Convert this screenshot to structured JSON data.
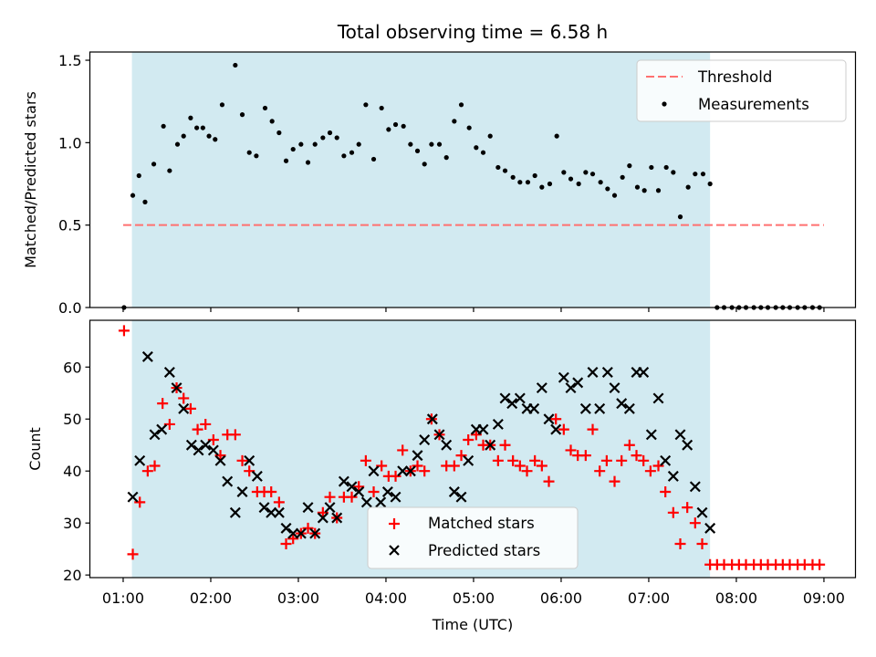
{
  "chart_data": [
    {
      "type": "scatter",
      "title": "Total observing time = 6.58 h",
      "xlabel": "",
      "ylabel": "Matched/Predicted stars",
      "ylim": [
        0,
        1.55
      ],
      "yticks": [
        "0.0",
        "0.5",
        "1.0",
        "1.5"
      ],
      "xlim": [
        0.62,
        9.36
      ],
      "xticks": [
        1,
        2,
        3,
        4,
        5,
        6,
        7,
        8,
        9
      ],
      "shaded_span": {
        "x": [
          1.1,
          7.7
        ],
        "color": "#add8e6"
      },
      "legend": {
        "location": "upper right"
      },
      "series": [
        {
          "name": "Threshold",
          "kind": "dashed-line",
          "color": "#ff7070",
          "x": [
            1.0,
            9.0
          ],
          "y": [
            0.5,
            0.5
          ]
        },
        {
          "name": "Measurements",
          "kind": "points",
          "color": "#000000",
          "x": [
            1.01,
            1.11,
            1.18,
            1.25,
            1.35,
            1.46,
            1.53,
            1.62,
            1.69,
            1.77,
            1.84,
            1.91,
            1.98,
            2.05,
            2.13,
            2.28,
            2.36,
            2.44,
            2.52,
            2.62,
            2.7,
            2.78,
            2.86,
            2.94,
            3.03,
            3.11,
            3.19,
            3.28,
            3.36,
            3.44,
            3.52,
            3.61,
            3.69,
            3.77,
            3.86,
            3.95,
            4.03,
            4.11,
            4.2,
            4.28,
            4.36,
            4.44,
            4.52,
            4.61,
            4.69,
            4.78,
            4.86,
            4.95,
            5.03,
            5.11,
            5.19,
            5.28,
            5.36,
            5.45,
            5.53,
            5.62,
            5.7,
            5.78,
            5.87,
            5.95,
            6.03,
            6.11,
            6.2,
            6.28,
            6.36,
            6.45,
            6.53,
            6.61,
            6.7,
            6.78,
            6.87,
            6.95,
            7.03,
            7.11,
            7.2,
            7.28,
            7.36,
            7.45,
            7.53,
            7.62,
            7.7,
            7.78,
            7.86,
            7.95,
            8.03,
            8.11,
            8.2,
            8.28,
            8.36,
            8.45,
            8.53,
            8.61,
            8.7,
            8.78,
            8.87,
            8.95
          ],
          "y": [
            0.0,
            0.68,
            0.8,
            0.64,
            0.87,
            1.1,
            0.83,
            0.99,
            1.04,
            1.15,
            1.09,
            1.09,
            1.04,
            1.02,
            1.23,
            1.47,
            1.17,
            0.94,
            0.92,
            1.21,
            1.13,
            1.06,
            0.89,
            0.96,
            0.99,
            0.88,
            0.99,
            1.03,
            1.06,
            1.03,
            0.92,
            0.94,
            0.99,
            1.23,
            0.9,
            1.21,
            1.08,
            1.11,
            1.1,
            0.99,
            0.95,
            0.87,
            0.99,
            0.99,
            0.91,
            1.13,
            1.23,
            1.09,
            0.97,
            0.94,
            1.04,
            0.85,
            0.83,
            0.79,
            0.76,
            0.76,
            0.8,
            0.73,
            0.75,
            1.04,
            0.82,
            0.78,
            0.75,
            0.82,
            0.81,
            0.76,
            0.72,
            0.68,
            0.79,
            0.86,
            0.73,
            0.71,
            0.85,
            0.71,
            0.85,
            0.82,
            0.55,
            0.73,
            0.81,
            0.81,
            0.75,
            0.0,
            0.0,
            0.0,
            0.0,
            0.0,
            0.0,
            0.0,
            0.0,
            0.0,
            0.0,
            0.0,
            0.0,
            0.0,
            0.0,
            0.0
          ]
        }
      ]
    },
    {
      "type": "scatter",
      "title": "",
      "xlabel": "Time (UTC)",
      "ylabel": "Count",
      "ylim": [
        19.5,
        69
      ],
      "yticks": [
        20,
        30,
        40,
        50,
        60
      ],
      "xlim": [
        0.62,
        9.36
      ],
      "xticks": [
        1,
        2,
        3,
        4,
        5,
        6,
        7,
        8,
        9
      ],
      "xticklabels": [
        "01:00",
        "02:00",
        "03:00",
        "04:00",
        "05:00",
        "06:00",
        "07:00",
        "08:00",
        "09:00"
      ],
      "shaded_span": {
        "x": [
          1.1,
          7.7
        ],
        "color": "#add8e6"
      },
      "legend": {
        "location": "lower center"
      },
      "series": [
        {
          "name": "Matched stars",
          "marker": "plus",
          "color": "#ff0000",
          "x": [
            1.01,
            1.11,
            1.19,
            1.28,
            1.36,
            1.45,
            1.53,
            1.61,
            1.69,
            1.77,
            1.85,
            1.94,
            2.03,
            2.11,
            2.19,
            2.28,
            2.36,
            2.44,
            2.53,
            2.61,
            2.69,
            2.78,
            2.86,
            2.94,
            3.03,
            3.11,
            3.19,
            3.28,
            3.36,
            3.44,
            3.52,
            3.61,
            3.69,
            3.77,
            3.86,
            3.95,
            4.03,
            4.11,
            4.19,
            4.28,
            4.36,
            4.44,
            4.52,
            4.61,
            4.69,
            4.78,
            4.86,
            4.94,
            5.03,
            5.11,
            5.19,
            5.28,
            5.36,
            5.45,
            5.53,
            5.61,
            5.7,
            5.78,
            5.86,
            5.94,
            6.03,
            6.11,
            6.19,
            6.28,
            6.36,
            6.44,
            6.52,
            6.61,
            6.69,
            6.78,
            6.86,
            6.94,
            7.02,
            7.11,
            7.19,
            7.28,
            7.36,
            7.44,
            7.53,
            7.61,
            7.7,
            7.78,
            7.86,
            7.95,
            8.03,
            8.11,
            8.2,
            8.28,
            8.36,
            8.45,
            8.53,
            8.61,
            8.7,
            8.78,
            8.87,
            8.95
          ],
          "y": [
            67,
            24,
            34,
            40,
            41,
            53,
            49,
            56,
            54,
            52,
            48,
            49,
            46,
            43,
            47,
            47,
            42,
            40,
            36,
            36,
            36,
            34,
            26,
            27,
            28,
            29,
            28,
            32,
            35,
            31,
            35,
            35,
            37,
            42,
            36,
            41,
            39,
            39,
            44,
            40,
            41,
            40,
            50,
            47,
            41,
            41,
            43,
            46,
            47,
            45,
            45,
            42,
            45,
            42,
            41,
            40,
            42,
            41,
            38,
            50,
            48,
            44,
            43,
            43,
            48,
            40,
            42,
            38,
            42,
            45,
            43,
            42,
            40,
            41,
            36,
            32,
            26,
            33,
            30,
            26,
            22,
            22,
            22,
            22,
            22,
            22,
            22,
            22,
            22,
            22,
            22,
            22,
            22,
            22,
            22,
            22
          ]
        },
        {
          "name": "Predicted stars",
          "marker": "x",
          "color": "#000000",
          "x": [
            1.11,
            1.19,
            1.28,
            1.36,
            1.44,
            1.53,
            1.61,
            1.69,
            1.78,
            1.86,
            1.94,
            2.03,
            2.11,
            2.19,
            2.28,
            2.36,
            2.44,
            2.53,
            2.61,
            2.69,
            2.78,
            2.86,
            2.94,
            3.03,
            3.11,
            3.19,
            3.28,
            3.36,
            3.44,
            3.52,
            3.61,
            3.69,
            3.78,
            3.86,
            3.94,
            4.02,
            4.11,
            4.19,
            4.28,
            4.36,
            4.44,
            4.53,
            4.61,
            4.69,
            4.78,
            4.86,
            4.94,
            5.03,
            5.11,
            5.19,
            5.28,
            5.36,
            5.44,
            5.53,
            5.61,
            5.69,
            5.78,
            5.86,
            5.94,
            6.03,
            6.11,
            6.19,
            6.28,
            6.36,
            6.44,
            6.53,
            6.61,
            6.69,
            6.78,
            6.86,
            6.94,
            7.03,
            7.11,
            7.19,
            7.28,
            7.36,
            7.44,
            7.53,
            7.61,
            7.7
          ],
          "y": [
            35,
            42,
            62,
            47,
            48,
            59,
            56,
            52,
            45,
            44,
            45,
            44,
            42,
            38,
            32,
            36,
            42,
            39,
            33,
            32,
            32,
            29,
            28,
            28,
            33,
            28,
            31,
            33,
            31,
            38,
            37,
            36,
            34,
            40,
            34,
            36,
            35,
            40,
            40,
            43,
            46,
            50,
            47,
            45,
            36,
            35,
            42,
            48,
            48,
            45,
            49,
            54,
            53,
            54,
            52,
            52,
            56,
            50,
            48,
            58,
            56,
            57,
            52,
            59,
            52,
            59,
            56,
            53,
            52,
            59,
            59,
            47,
            54,
            42,
            39,
            47,
            45,
            37,
            32,
            29
          ]
        }
      ]
    }
  ]
}
